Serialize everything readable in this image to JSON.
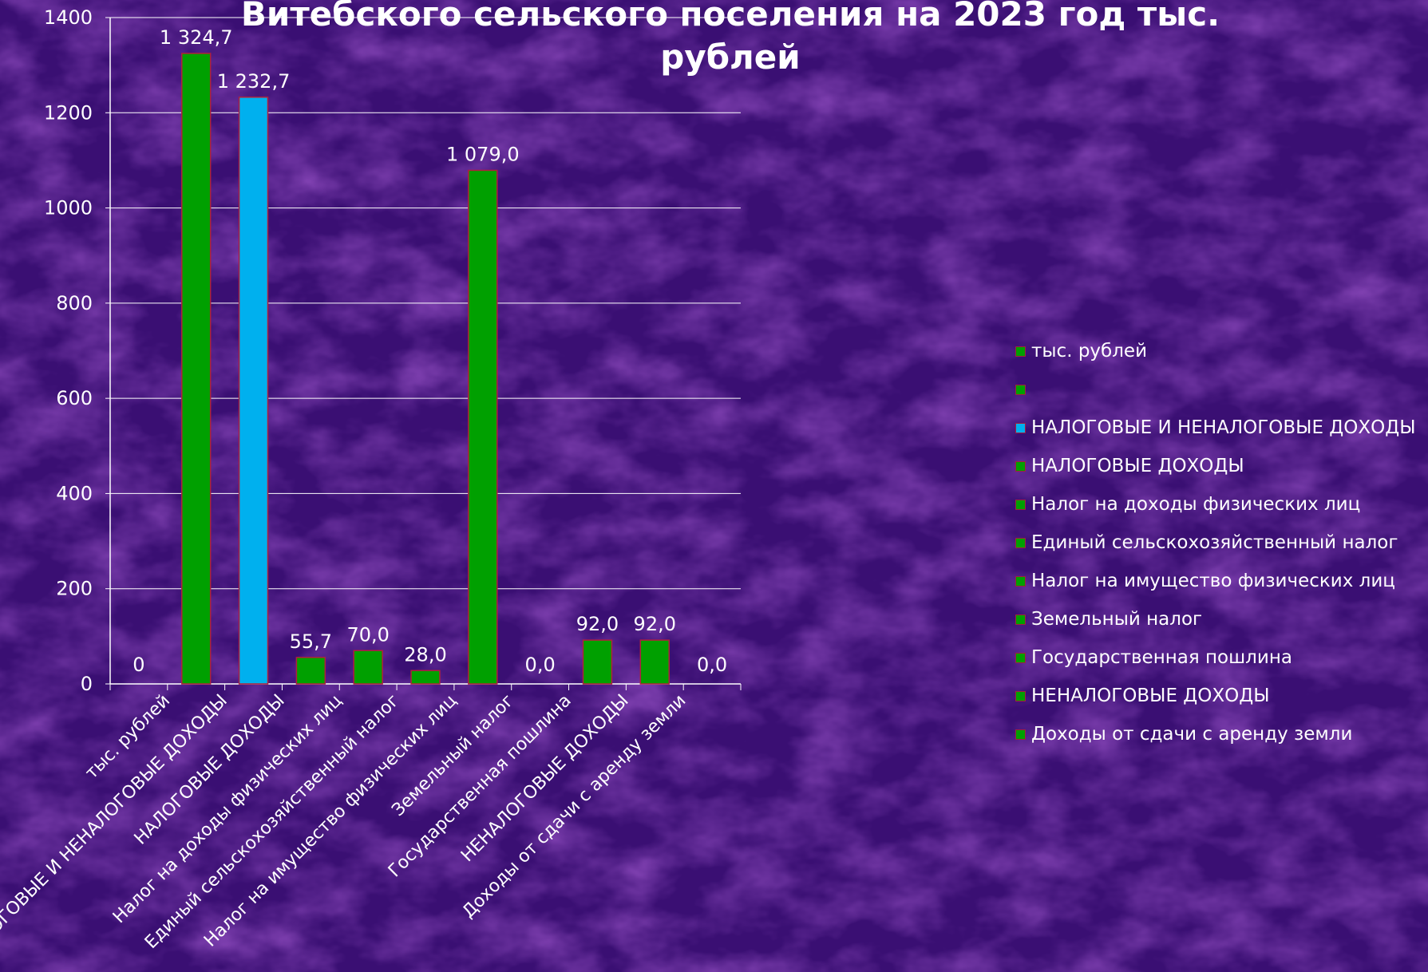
{
  "chart_data": {
    "type": "bar",
    "title_line1": "Витебского сельского поселения на 2023 год тыс.",
    "title_line2": "рублей",
    "xlabel": "",
    "ylabel": "",
    "ylim": [
      0,
      1400
    ],
    "ytick_step": 200,
    "yticks": [
      "0",
      "200",
      "400",
      "600",
      "800",
      "1000",
      "1200",
      "1400"
    ],
    "grid": true,
    "legend_position": "right",
    "categories": [
      "тыс. рублей",
      "",
      "НАЛОГОВЫЕ И НЕНАЛОГОВЫЕ ДОХОДЫ",
      "НАЛОГОВЫЕ ДОХОДЫ",
      "Налог на доходы физических лиц",
      "Единый сельскохозяйственный налог",
      "Налог на имущество физических лиц",
      "Земельный налог",
      "Государственная пошлина",
      "НЕНАЛОГОВЫЕ ДОХОДЫ",
      "Доходы от сдачи с аренду земли"
    ],
    "xtick_labels": [
      "тыс. рублей",
      "НАЛОГОВЫЕ И НЕНАЛОГОВЫЕ ДОХОДЫ",
      "НАЛОГОВЫЕ ДОХОДЫ",
      "Налог на доходы физических лиц",
      "Единый сельскохозяйственный налог",
      "Налог на имущество физических лиц",
      "Земельный налог",
      "Государственная пошлина",
      "НЕНАЛОГОВЫЕ ДОХОДЫ",
      "Доходы от сдачи с аренду земли"
    ],
    "values": [
      0,
      1324.7,
      1232.7,
      55.7,
      70.0,
      28.0,
      1079.0,
      0.0,
      92.0,
      92.0,
      0.0
    ],
    "data_labels": [
      "0",
      "1 324,7",
      "1 232,7",
      "55,7",
      "70,0",
      "28,0",
      "1 079,0",
      "0,0",
      "92,0",
      "92,0",
      "0,0"
    ],
    "colors": [
      "#00a000",
      "#00a000",
      "#00b0ee",
      "#00a000",
      "#00a000",
      "#00a000",
      "#00a000",
      "#00a000",
      "#00a000",
      "#00a000",
      "#00a000"
    ],
    "bar_border_color": "#b0203c"
  }
}
